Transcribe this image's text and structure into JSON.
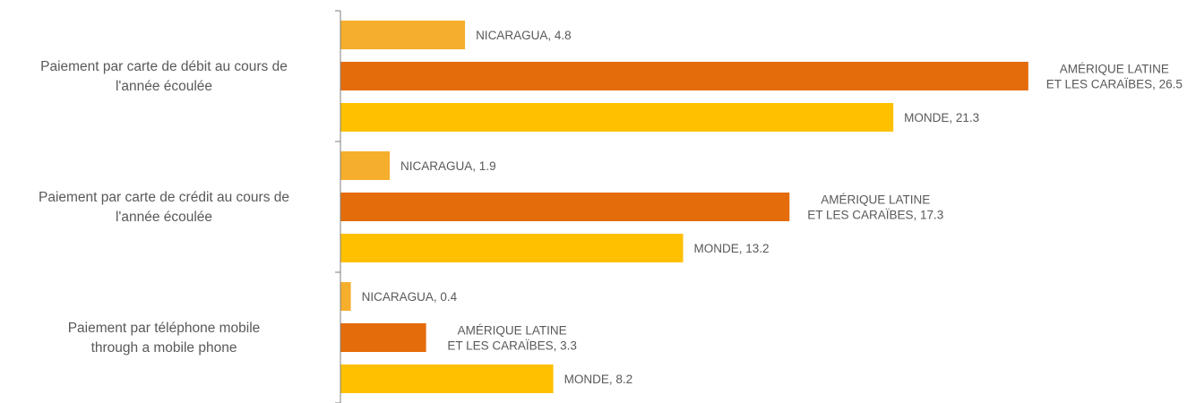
{
  "chart_data": {
    "type": "bar",
    "orientation": "horizontal",
    "xlim": [
      0,
      27.3
    ],
    "grid": false,
    "legend": "none",
    "categories": [
      [
        "Paiement par carte de débit au cours de",
        "l'année écoulée"
      ],
      [
        "Paiement par carte de crédit au cours de",
        "l'année écoulée"
      ],
      [
        "Paiement par téléphone mobile",
        "through a mobile phone"
      ]
    ],
    "series": [
      {
        "label": [
          "NICARAGUA"
        ],
        "color": "#F6AE2D",
        "values": [
          4.8,
          1.9,
          0.4
        ]
      },
      {
        "label": [
          "AMÉRIQUE LATINE",
          "ET LES CARAÏBES"
        ],
        "color": "#E46C0A",
        "values": [
          26.5,
          17.3,
          3.3
        ]
      },
      {
        "label": [
          "MONDE"
        ],
        "color": "#FFC000",
        "values": [
          21.3,
          13.2,
          8.2
        ]
      }
    ]
  }
}
